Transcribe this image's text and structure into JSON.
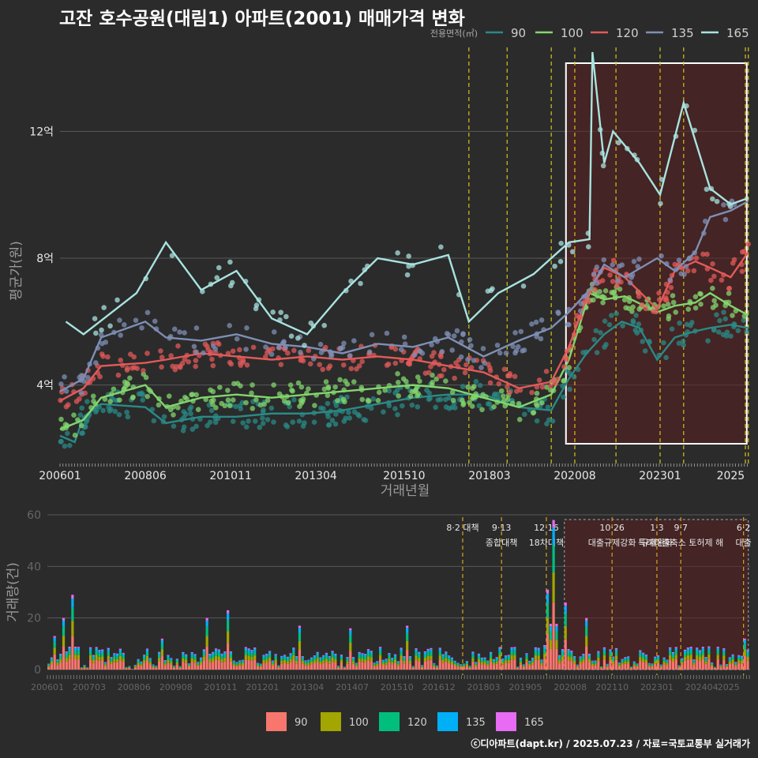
{
  "title": "고잔 호수공원(대림1) 아파트(2001) 매매가격 변화",
  "credit": "ⓒ디아파트(dapt.kr) / 2025.07.23 / 자료=국토교통부 실거래가",
  "colors": {
    "90": "#2a8a86",
    "100": "#82d66e",
    "120": "#e25a5a",
    "135": "#7f8fb5",
    "165": "#a8e3e0"
  },
  "bar_colors": {
    "90": "#f8766d",
    "100": "#a3a500",
    "120": "#00bf7d",
    "135": "#00b0f6",
    "165": "#e76bf3"
  },
  "chart_data": [
    {
      "type": "line",
      "title": "고잔 호수공원(대림1) 아파트(2001) 매매가격 변화",
      "xlabel": "거래년월",
      "ylabel": "평균가(원)",
      "legend_title": "전용면적(㎡)",
      "legend_position": "top-right",
      "ylim": [
        1.5,
        14.7
      ],
      "y_ticks": [
        {
          "v": 4,
          "label": "4억"
        },
        {
          "v": 8,
          "label": "8억"
        },
        {
          "v": 12,
          "label": "12억"
        }
      ],
      "x_ticks": [
        "200601",
        "200806",
        "201011",
        "201304",
        "201510",
        "201803",
        "202008",
        "202301",
        "2025"
      ],
      "policy_lines": [
        "2017.08",
        "2018.09",
        "2019.12",
        "2020.08",
        "2021.10",
        "2023.01",
        "2023.09",
        "2025.06",
        "2025.07"
      ],
      "highlight": {
        "from": "2020.05",
        "to": "2025.07"
      },
      "series": [
        {
          "name": "90",
          "points": [
            [
              "2006.01",
              2.4
            ],
            [
              "2006.06",
              2.2
            ],
            [
              "2006.09",
              3.0
            ],
            [
              "2007.03",
              3.4
            ],
            [
              "2008.06",
              3.3
            ],
            [
              "2009.01",
              2.8
            ],
            [
              "2010.01",
              3.0
            ],
            [
              "2011.01",
              3.0
            ],
            [
              "2012.01",
              3.1
            ],
            [
              "2013.01",
              3.1
            ],
            [
              "2014.01",
              3.2
            ],
            [
              "2015.01",
              3.4
            ],
            [
              "2016.01",
              3.6
            ],
            [
              "2017.01",
              3.7
            ],
            [
              "2018.01",
              3.7
            ],
            [
              "2019.01",
              3.3
            ],
            [
              "2019.12",
              3.2
            ],
            [
              "2020.06",
              4.2
            ],
            [
              "2020.12",
              5.0
            ],
            [
              "2021.06",
              5.6
            ],
            [
              "2021.12",
              6.0
            ],
            [
              "2022.06",
              5.8
            ],
            [
              "2022.12",
              4.8
            ],
            [
              "2023.06",
              5.5
            ],
            [
              "2024.01",
              5.7
            ],
            [
              "2024.06",
              5.8
            ],
            [
              "2025.01",
              5.9
            ],
            [
              "2025.07",
              5.8
            ]
          ]
        },
        {
          "name": "100",
          "points": [
            [
              "2006.01",
              2.6
            ],
            [
              "2006.09",
              2.9
            ],
            [
              "2007.03",
              3.6
            ],
            [
              "2008.06",
              4.0
            ],
            [
              "2009.01",
              3.3
            ],
            [
              "2010.01",
              3.6
            ],
            [
              "2011.01",
              3.7
            ],
            [
              "2012.01",
              3.6
            ],
            [
              "2013.01",
              3.7
            ],
            [
              "2014.01",
              3.8
            ],
            [
              "2015.01",
              3.9
            ],
            [
              "2016.01",
              4.0
            ],
            [
              "2017.01",
              3.9
            ],
            [
              "2018.01",
              3.6
            ],
            [
              "2019.01",
              3.3
            ],
            [
              "2019.12",
              3.7
            ],
            [
              "2020.06",
              4.8
            ],
            [
              "2021.01",
              6.9
            ],
            [
              "2021.06",
              6.7
            ],
            [
              "2022.01",
              6.8
            ],
            [
              "2022.12",
              6.3
            ],
            [
              "2023.06",
              6.5
            ],
            [
              "2024.01",
              6.6
            ],
            [
              "2024.06",
              6.9
            ],
            [
              "2025.01",
              6.5
            ],
            [
              "2025.07",
              6.2
            ]
          ]
        },
        {
          "name": "120",
          "points": [
            [
              "2006.01",
              3.5
            ],
            [
              "2006.09",
              3.9
            ],
            [
              "2007.03",
              4.6
            ],
            [
              "2008.06",
              4.7
            ],
            [
              "2009.01",
              4.8
            ],
            [
              "2010.01",
              5.0
            ],
            [
              "2011.01",
              4.9
            ],
            [
              "2012.01",
              4.8
            ],
            [
              "2013.01",
              4.9
            ],
            [
              "2014.01",
              4.8
            ],
            [
              "2015.01",
              4.9
            ],
            [
              "2016.01",
              4.8
            ],
            [
              "2017.01",
              4.6
            ],
            [
              "2018.01",
              4.4
            ],
            [
              "2019.01",
              3.9
            ],
            [
              "2019.12",
              4.1
            ],
            [
              "2020.06",
              5.2
            ],
            [
              "2021.01",
              7.0
            ],
            [
              "2021.06",
              7.7
            ],
            [
              "2022.01",
              7.4
            ],
            [
              "2022.12",
              6.4
            ],
            [
              "2023.06",
              7.6
            ],
            [
              "2024.01",
              7.9
            ],
            [
              "2024.06",
              7.7
            ],
            [
              "2025.01",
              7.4
            ],
            [
              "2025.07",
              8.2
            ]
          ]
        },
        {
          "name": "135",
          "points": [
            [
              "2006.01",
              3.8
            ],
            [
              "2006.09",
              4.2
            ],
            [
              "2007.03",
              5.5
            ],
            [
              "2008.06",
              6.0
            ],
            [
              "2009.01",
              5.5
            ],
            [
              "2010.01",
              5.4
            ],
            [
              "2011.01",
              5.6
            ],
            [
              "2012.01",
              5.3
            ],
            [
              "2013.01",
              5.2
            ],
            [
              "2014.01",
              5.0
            ],
            [
              "2015.01",
              5.3
            ],
            [
              "2016.01",
              5.2
            ],
            [
              "2017.01",
              5.5
            ],
            [
              "2018.01",
              4.9
            ],
            [
              "2019.01",
              5.4
            ],
            [
              "2019.12",
              5.8
            ],
            [
              "2020.06",
              6.3
            ],
            [
              "2021.01",
              7.0
            ],
            [
              "2021.06",
              7.8
            ],
            [
              "2022.01",
              7.4
            ],
            [
              "2022.12",
              8.0
            ],
            [
              "2023.06",
              7.6
            ],
            [
              "2024.01",
              8.2
            ],
            [
              "2024.06",
              9.3
            ],
            [
              "2025.01",
              9.5
            ],
            [
              "2025.07",
              9.8
            ]
          ]
        },
        {
          "name": "165",
          "points": [
            [
              "2006.03",
              6.0
            ],
            [
              "2006.09",
              5.6
            ],
            [
              "2008.03",
              6.9
            ],
            [
              "2009.01",
              8.5
            ],
            [
              "2010.01",
              7.0
            ],
            [
              "2011.01",
              7.6
            ],
            [
              "2012.01",
              6.1
            ],
            [
              "2013.01",
              5.6
            ],
            [
              "2014.01",
              6.9
            ],
            [
              "2015.01",
              8.0
            ],
            [
              "2016.01",
              7.8
            ],
            [
              "2017.01",
              8.1
            ],
            [
              "2017.08",
              6.0
            ],
            [
              "2018.06",
              6.9
            ],
            [
              "2019.06",
              7.5
            ],
            [
              "2020.06",
              8.5
            ],
            [
              "2021.01",
              8.6
            ],
            [
              "2021.02",
              14.5
            ],
            [
              "2021.06",
              11.0
            ],
            [
              "2021.09",
              12.0
            ],
            [
              "2022.06",
              11.0
            ],
            [
              "2023.01",
              10.0
            ],
            [
              "2023.09",
              12.9
            ],
            [
              "2024.06",
              10.2
            ],
            [
              "2025.01",
              9.7
            ],
            [
              "2025.07",
              9.9
            ]
          ]
        }
      ]
    },
    {
      "type": "bar",
      "ylabel": "거래량(건)",
      "ylim": [
        0,
        60
      ],
      "y_ticks": [
        0,
        20,
        40,
        60
      ],
      "x_ticks": [
        "200601",
        "200703",
        "200806",
        "200908",
        "201011",
        "201201",
        "201304",
        "201407",
        "201510",
        "201612",
        "201803",
        "201905",
        "202008",
        "202110",
        "202301",
        "202404",
        "2025"
      ],
      "annotations": [
        {
          "date": "2017.08",
          "line1": "8·2 대책",
          "line2": ""
        },
        {
          "date": "2018.09",
          "line1": "9·13",
          "line2": "종합대책"
        },
        {
          "date": "2019.12",
          "line1": "12·16",
          "line2": "18차대책"
        },
        {
          "date": "2021.10",
          "line1": "10·26",
          "line2": "대출규제강화"
        },
        {
          "date": "2023.01",
          "line1": "1·3",
          "line2": "규제완화"
        },
        {
          "date": "2023.09",
          "line1": "9·7",
          "line2": "특례대출축소 토허제 해"
        },
        {
          "date": "2025.06",
          "line1": "6·2",
          "line2": "대출"
        }
      ],
      "series_names": [
        "90",
        "100",
        "120",
        "135",
        "165"
      ],
      "peaks": [
        [
          "2006.03",
          13
        ],
        [
          "2006.06",
          20
        ],
        [
          "2006.09",
          29
        ],
        [
          "2007.02",
          8
        ],
        [
          "2009.03",
          12
        ],
        [
          "2010.06",
          20
        ],
        [
          "2011.01",
          23
        ],
        [
          "2013.01",
          17
        ],
        [
          "2014.06",
          16
        ],
        [
          "2016.01",
          17
        ],
        [
          "2019.12",
          31
        ],
        [
          "2020.02",
          58
        ],
        [
          "2020.06",
          26
        ],
        [
          "2021.01",
          20
        ],
        [
          "2022.12",
          5
        ],
        [
          "2024.06",
          9
        ],
        [
          "2025.06",
          12
        ]
      ]
    }
  ],
  "legend_bottom": [
    "90",
    "100",
    "120",
    "135",
    "165"
  ]
}
